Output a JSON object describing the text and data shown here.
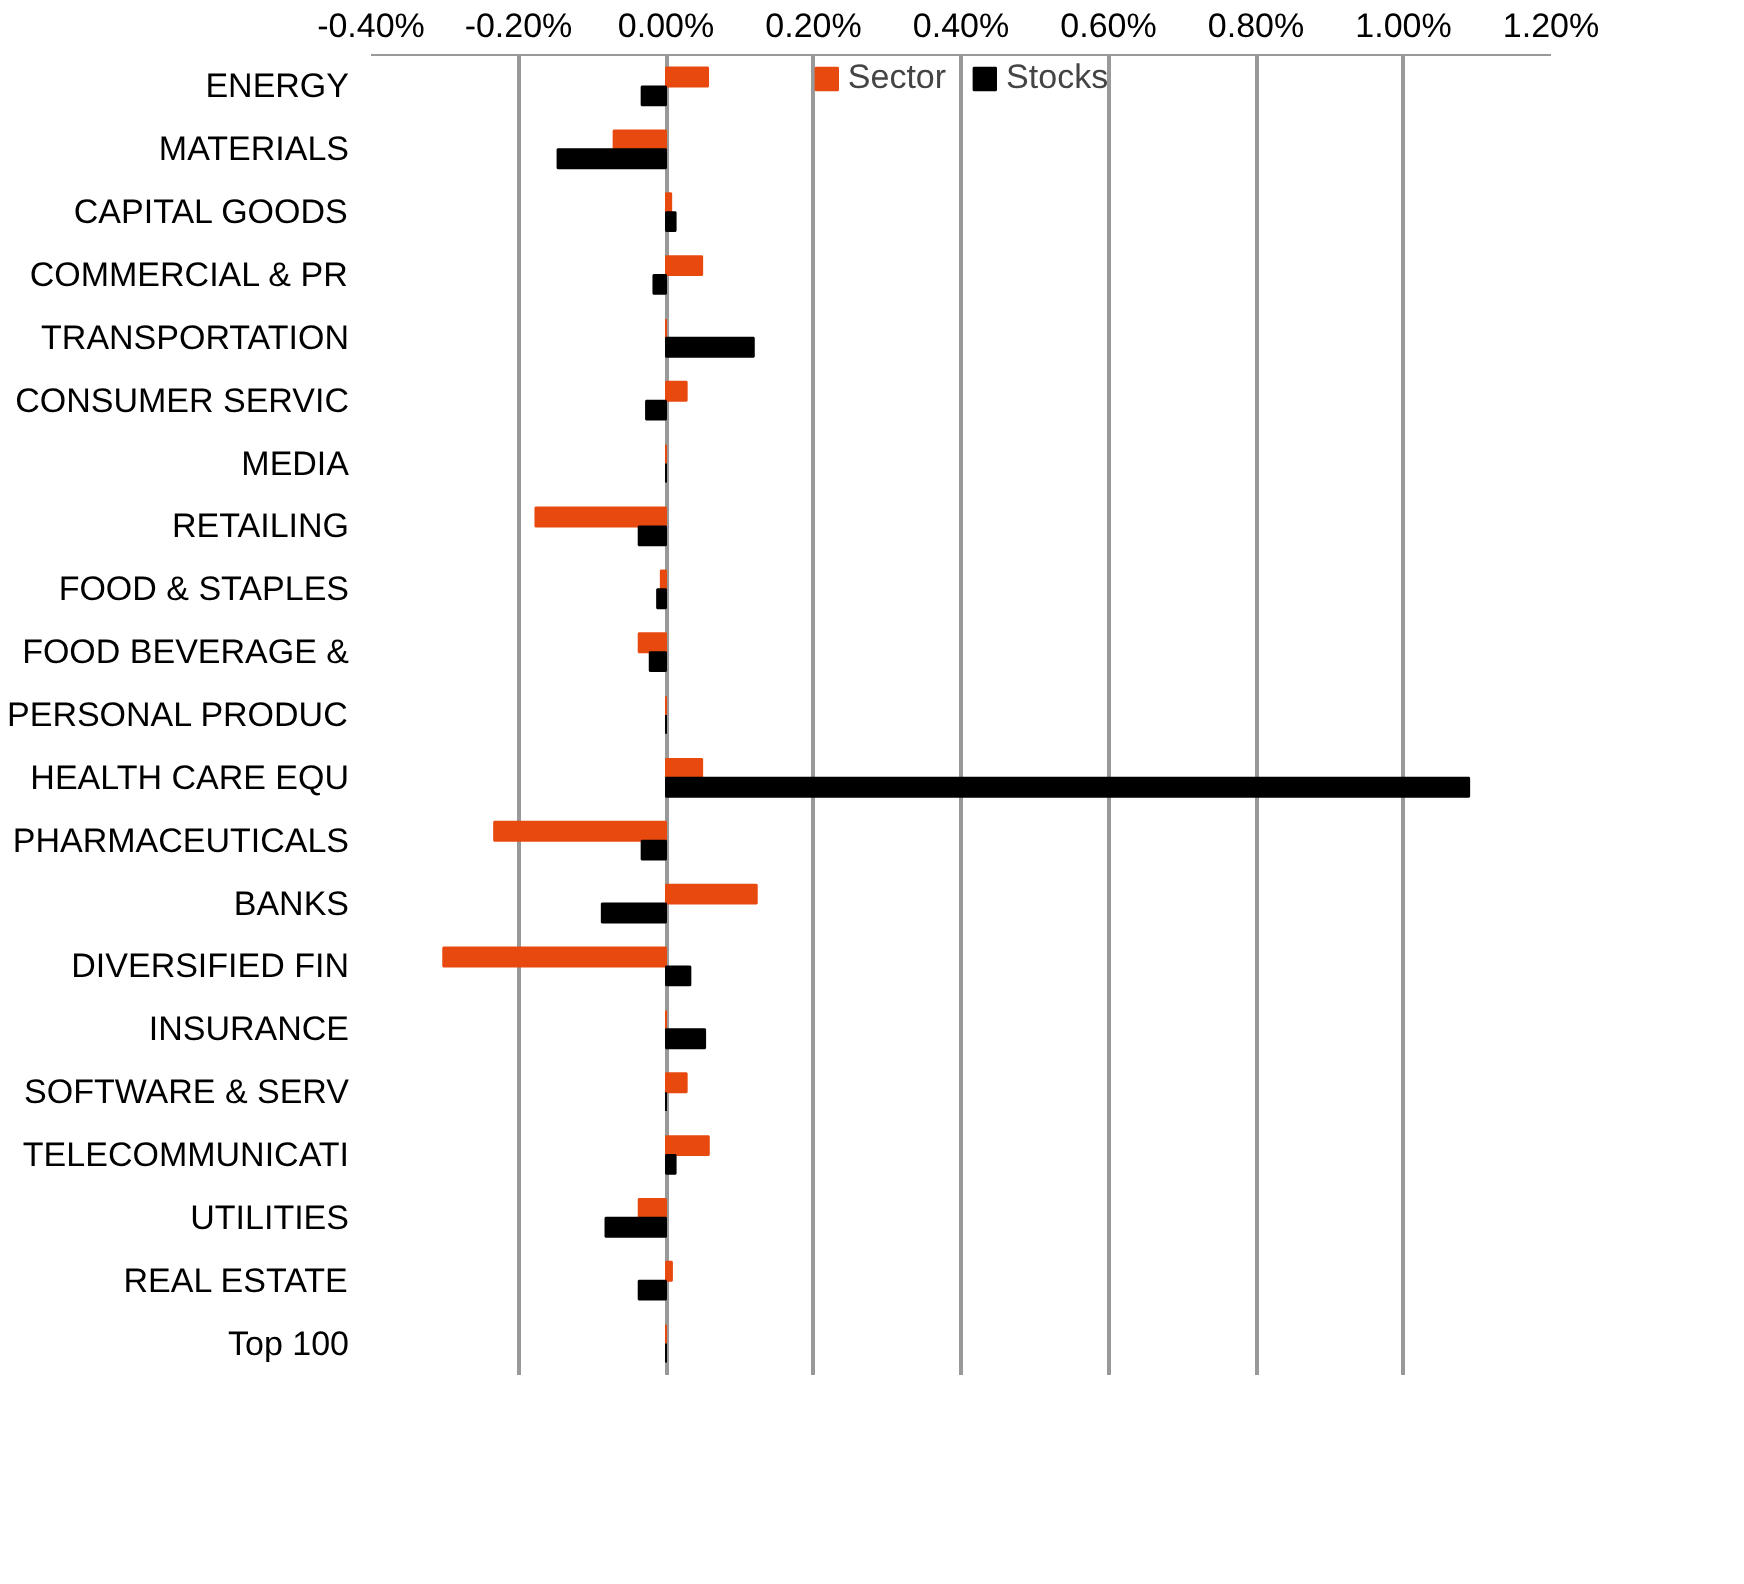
{
  "chart_data": {
    "type": "bar",
    "orientation": "horizontal",
    "categories": [
      "ENERGY",
      "MATERIALS",
      "CAPITAL GOODS",
      "COMMERCIAL & PR",
      "TRANSPORTATION",
      "CONSUMER SERVIC",
      "MEDIA",
      "RETAILING",
      "FOOD & STAPLES",
      "FOOD BEVERAGE &",
      "PERSONAL PRODUC",
      "HEALTH CARE EQU",
      "PHARMACEUTICALS",
      "BANKS",
      "DIVERSIFIED FIN",
      "INSURANCE",
      "SOFTWARE & SERV",
      "TELECOMMUNICATI",
      "UTILITIES",
      "REAL ESTATE",
      "Top 100"
    ],
    "series": [
      {
        "name": "Sector",
        "color": "#e8490f",
        "values": [
          0.057,
          -0.071,
          0.007,
          0.049,
          0,
          0.028,
          0,
          -0.177,
          -0.007,
          -0.037,
          0,
          0.049,
          -0.233,
          0.123,
          -0.302,
          0,
          0.028,
          0.058,
          -0.037,
          0.008,
          0
        ]
      },
      {
        "name": "Stocks",
        "color": "#000000",
        "values": [
          -0.033,
          -0.147,
          0.013,
          -0.017,
          0.119,
          -0.027,
          0,
          -0.037,
          -0.012,
          -0.022,
          0,
          1.089,
          -0.033,
          -0.087,
          0.033,
          0.053,
          0,
          0.013,
          -0.082,
          -0.037,
          0
        ]
      }
    ],
    "xlim": [
      -0.4,
      1.2
    ],
    "xticks": [
      {
        "value": -0.4,
        "label": "-0.40%"
      },
      {
        "value": -0.2,
        "label": "-0.20%"
      },
      {
        "value": 0,
        "label": "0.00%"
      },
      {
        "value": 0.2,
        "label": "0.20%"
      },
      {
        "value": 0.4,
        "label": "0.40%"
      },
      {
        "value": 0.6,
        "label": "0.60%"
      },
      {
        "value": 0.8,
        "label": "0.80%"
      },
      {
        "value": 1.0,
        "label": "1.00%"
      },
      {
        "value": 1.2,
        "label": "1.20%"
      }
    ],
    "grid": "x",
    "legend": "top"
  }
}
